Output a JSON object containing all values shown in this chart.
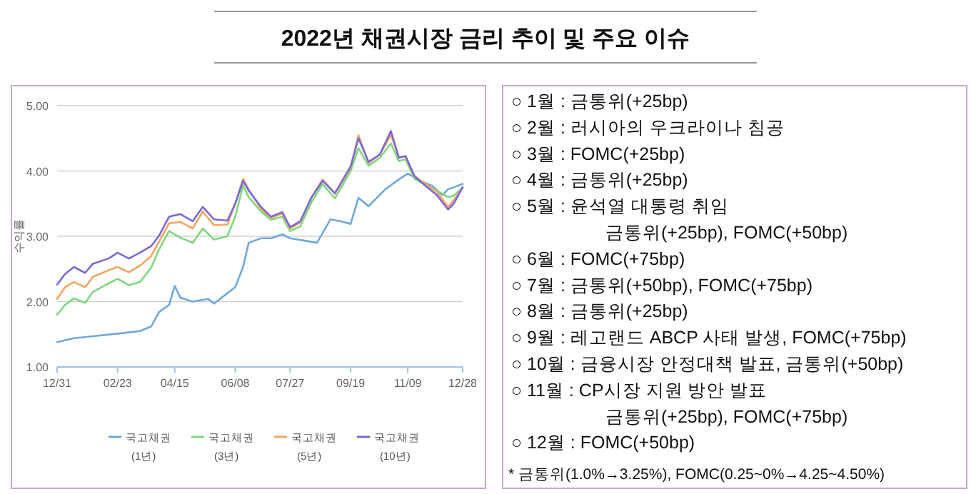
{
  "chart_data": [
    {
      "type": "line",
      "title": "2022년 채권시장 금리 추이 및 주요 이슈",
      "ylabel": "수익률",
      "ylim": [
        1,
        5
      ],
      "yticks": [
        {
          "value": 1,
          "label": "1.00"
        },
        {
          "value": 2,
          "label": "2.00"
        },
        {
          "value": 3,
          "label": "3.00"
        },
        {
          "value": 4,
          "label": "4.00"
        },
        {
          "value": 5,
          "label": "5.00"
        }
      ],
      "xlim": [
        "2021-12-31",
        "2022-12-28"
      ],
      "xticks": [
        {
          "value": "2021-12-31",
          "label": "12/31"
        },
        {
          "value": "2022-02-23",
          "label": "02/23"
        },
        {
          "value": "2022-04-15",
          "label": "04/15"
        },
        {
          "value": "2022-06-08",
          "label": "06/08"
        },
        {
          "value": "2022-07-27",
          "label": "07/27"
        },
        {
          "value": "2022-09-19",
          "label": "09/19"
        },
        {
          "value": "2022-11-09",
          "label": "11/09"
        },
        {
          "value": "2022-12-28",
          "label": "12/28"
        }
      ],
      "grid": "y",
      "legend": "bottom",
      "marker": "none",
      "line_style": "solid",
      "x": [
        "2021-12-31",
        "2022-01-07",
        "2022-01-15",
        "2022-01-25",
        "2022-02-01",
        "2022-02-15",
        "2022-02-23",
        "2022-03-05",
        "2022-03-15",
        "2022-03-25",
        "2022-04-01",
        "2022-04-10",
        "2022-04-20",
        "2022-05-01",
        "2022-05-10",
        "2022-05-20",
        "2022-06-01",
        "2022-06-08",
        "2022-06-15",
        "2022-06-20",
        "2022-07-01",
        "2022-07-10",
        "2022-07-20",
        "2022-07-27",
        "2022-08-05",
        "2022-08-15",
        "2022-08-25",
        "2022-09-05",
        "2022-09-19",
        "2022-09-26",
        "2022-10-05",
        "2022-10-15",
        "2022-10-25",
        "2022-11-01",
        "2022-11-07",
        "2022-11-15",
        "2022-11-25",
        "2022-12-05",
        "2022-12-15",
        "2022-12-20",
        "2022-12-28"
      ],
      "series": [
        {
          "name": "국고채권 (1년)",
          "color": "#6fa8dc",
          "x": [
            "2021-12-31",
            "2022-01-15",
            "2022-02-01",
            "2022-02-23",
            "2022-03-15",
            "2022-03-25",
            "2022-04-01",
            "2022-04-10",
            "2022-04-15",
            "2022-04-20",
            "2022-05-01",
            "2022-05-15",
            "2022-05-20",
            "2022-06-01",
            "2022-06-08",
            "2022-06-15",
            "2022-06-20",
            "2022-07-01",
            "2022-07-10",
            "2022-07-20",
            "2022-07-27",
            "2022-08-10",
            "2022-08-20",
            "2022-09-01",
            "2022-09-10",
            "2022-09-19",
            "2022-09-26",
            "2022-10-05",
            "2022-10-20",
            "2022-11-01",
            "2022-11-09",
            "2022-11-20",
            "2022-12-01",
            "2022-12-10",
            "2022-12-15",
            "2022-12-28"
          ],
          "values": [
            1.38,
            1.44,
            1.47,
            1.51,
            1.55,
            1.62,
            1.84,
            1.95,
            2.24,
            2.06,
            2.0,
            2.04,
            1.97,
            2.13,
            2.22,
            2.53,
            2.9,
            2.97,
            2.97,
            3.03,
            2.97,
            2.93,
            2.9,
            3.26,
            3.23,
            3.19,
            3.59,
            3.46,
            3.72,
            3.87,
            3.96,
            3.85,
            3.77,
            3.63,
            3.72,
            3.8
          ]
        },
        {
          "name": "국고채권 (3년)",
          "color": "#7ed87e",
          "values": [
            1.8,
            1.95,
            2.05,
            1.98,
            2.15,
            2.28,
            2.35,
            2.25,
            2.3,
            2.52,
            2.8,
            3.08,
            2.98,
            2.9,
            3.12,
            2.95,
            3.0,
            3.3,
            3.78,
            3.6,
            3.38,
            3.25,
            3.3,
            3.08,
            3.15,
            3.52,
            3.8,
            3.58,
            4.0,
            4.35,
            4.08,
            4.2,
            4.42,
            4.15,
            4.18,
            3.88,
            3.78,
            3.7,
            3.6,
            3.62,
            3.75
          ]
        },
        {
          "name": "국고채권 (5년)",
          "color": "#f4a460",
          "values": [
            2.04,
            2.22,
            2.3,
            2.22,
            2.38,
            2.48,
            2.53,
            2.45,
            2.55,
            2.7,
            2.92,
            3.2,
            3.22,
            3.12,
            3.38,
            3.17,
            3.18,
            3.5,
            3.88,
            3.72,
            3.42,
            3.28,
            3.35,
            3.12,
            3.21,
            3.6,
            3.87,
            3.65,
            4.05,
            4.55,
            4.12,
            4.25,
            4.55,
            4.22,
            4.22,
            3.92,
            3.8,
            3.68,
            3.45,
            3.55,
            3.75
          ]
        },
        {
          "name": "국고채권 (10년)",
          "color": "#7b68d8",
          "values": [
            2.26,
            2.42,
            2.53,
            2.44,
            2.58,
            2.66,
            2.75,
            2.66,
            2.75,
            2.85,
            3.01,
            3.3,
            3.34,
            3.23,
            3.45,
            3.26,
            3.24,
            3.5,
            3.85,
            3.7,
            3.45,
            3.3,
            3.37,
            3.14,
            3.23,
            3.59,
            3.85,
            3.66,
            4.07,
            4.5,
            4.14,
            4.25,
            4.61,
            4.2,
            4.23,
            3.92,
            3.77,
            3.63,
            3.41,
            3.5,
            3.75
          ]
        }
      ]
    },
    {
      "type": "other",
      "annotations": [
        "○ 1월 : 금통위(+25bp)",
        "○ 2월 : 러시아의 우크라이나 침공",
        "○ 3월 : FOMC(+25bp)",
        "○ 4월 : 금통위(+25bp)",
        "○ 5월 : 윤석열 대통령 취임",
        "금통위(+25bp), FOMC(+50bp)",
        "○ 6월 : FOMC(+75bp)",
        "○ 7월 : 금통위(+50bp), FOMC(+75bp)",
        "○ 8월 : 금통위(+25bp)",
        "○ 9월 : 레고랜드 ABCP 사태 발생, FOMC(+75bp)",
        "○ 10월 : 금융시장 안정대책 발표, 금통위(+50bp)",
        "○ 11월 : CP시장 지원 방안 발표",
        "금통위(+25bp), FOMC(+75bp)",
        "○ 12월 : FOMC(+50bp)",
        "* 금통위(1.0%→3.25%), FOMC(0.25~0%→4.25~4.50%)"
      ]
    }
  ]
}
